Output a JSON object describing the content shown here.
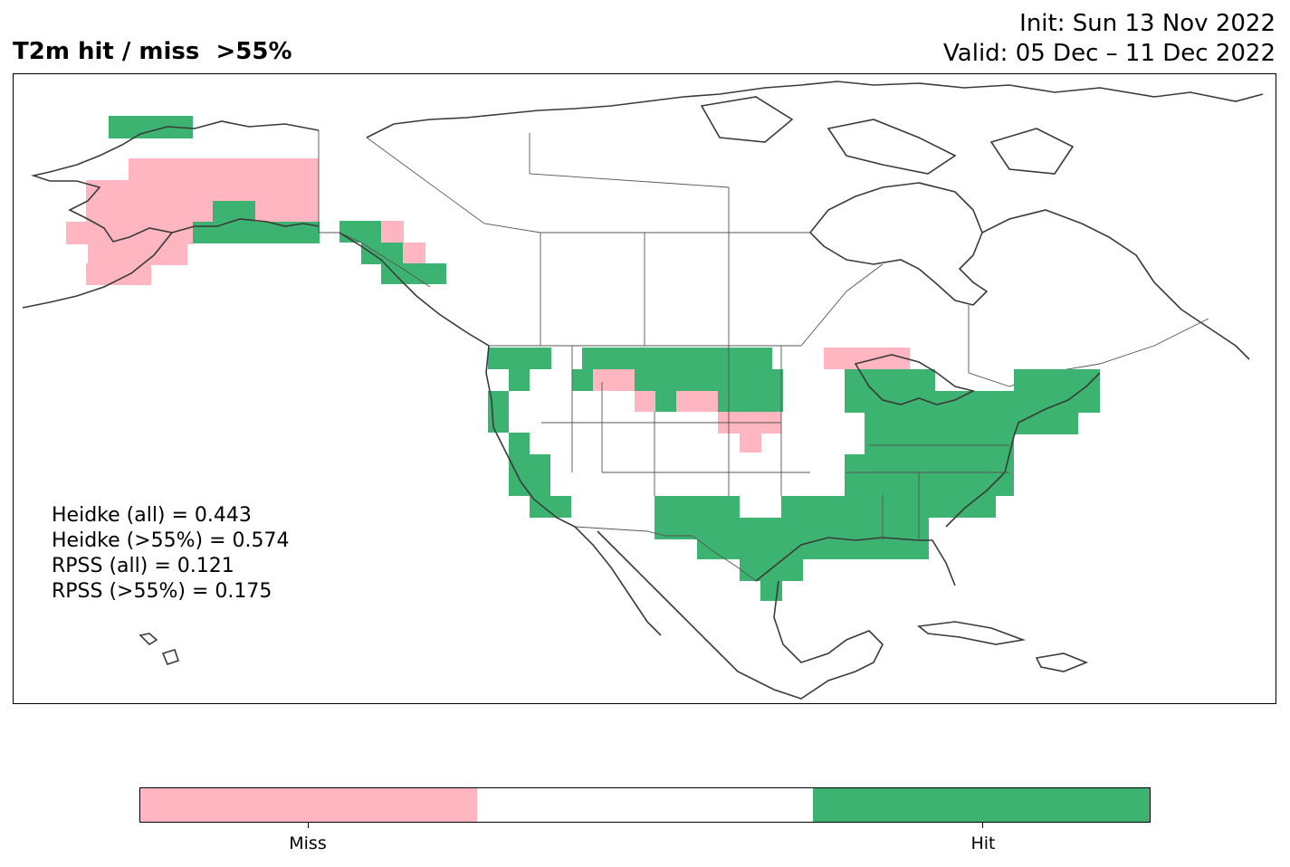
{
  "title": "T2m hit / miss  >55%",
  "init": "Init: Sun 13 Nov 2022",
  "valid": "Valid: 05 Dec – 11 Dec 2022",
  "stats": [
    "Heidke (all) = 0.443",
    "Heidke (>55%) = 0.574",
    "RPSS (all) = 0.121",
    "RPSS (>55%) = 0.175"
  ],
  "legend": {
    "miss_label": "Miss",
    "hit_label": "Hit",
    "colors": {
      "miss": "#ffb6c1",
      "neutral": "#ffffff",
      "hit": "#3cb371"
    }
  },
  "colors": {
    "coastline": "#3a3a3a",
    "border": "#555555"
  }
}
